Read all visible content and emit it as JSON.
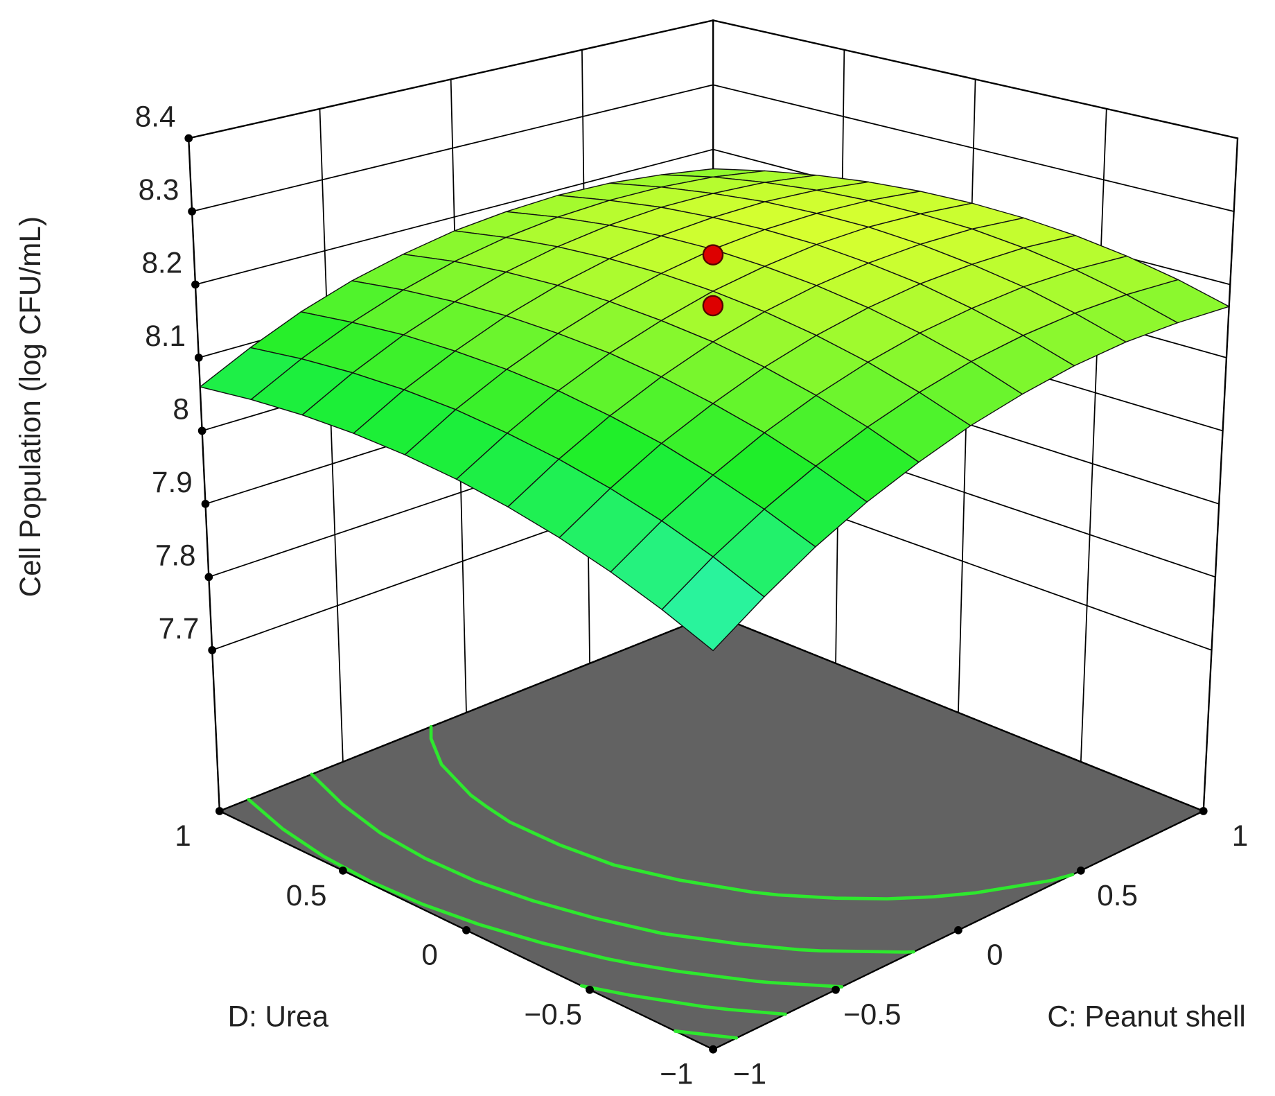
{
  "chart_data": {
    "type": "surface3d",
    "z_label": "Cell Population (log CFU/mL)",
    "x_label": "C: Peanut shell",
    "y_label": "D: Urea",
    "x": [
      -1,
      -0.8,
      -0.6,
      -0.4,
      -0.2,
      0,
      0.2,
      0.4,
      0.6,
      0.8,
      1
    ],
    "y": [
      -1,
      -0.8,
      -0.6,
      -0.4,
      -0.2,
      0,
      0.2,
      0.4,
      0.6,
      0.8,
      1
    ],
    "z": [
      [
        7.98,
        8.022,
        8.06,
        8.092,
        8.118,
        8.14,
        8.156,
        8.168,
        8.174,
        8.174,
        8.17
      ],
      [
        8.006,
        8.048,
        8.084,
        8.115,
        8.141,
        8.162,
        8.178,
        8.188,
        8.193,
        8.193,
        8.188
      ],
      [
        8.028,
        8.069,
        8.104,
        8.135,
        8.16,
        8.18,
        8.195,
        8.204,
        8.209,
        8.208,
        8.202
      ],
      [
        8.046,
        8.086,
        8.121,
        8.15,
        8.175,
        8.194,
        8.208,
        8.217,
        8.22,
        8.219,
        8.212
      ],
      [
        8.06,
        8.099,
        8.133,
        8.162,
        8.186,
        8.204,
        8.217,
        8.225,
        8.228,
        8.226,
        8.218
      ],
      [
        8.07,
        8.108,
        8.142,
        8.17,
        8.192,
        8.21,
        8.222,
        8.23,
        8.232,
        8.228,
        8.22
      ],
      [
        8.076,
        8.114,
        8.146,
        8.173,
        8.195,
        8.212,
        8.224,
        8.23,
        8.231,
        8.227,
        8.218
      ],
      [
        8.078,
        8.115,
        8.146,
        8.173,
        8.194,
        8.21,
        8.221,
        8.226,
        8.227,
        8.222,
        8.212
      ],
      [
        8.076,
        8.112,
        8.143,
        8.168,
        8.189,
        8.204,
        8.214,
        8.219,
        8.218,
        8.213,
        8.202
      ],
      [
        8.07,
        8.105,
        8.135,
        8.16,
        8.18,
        8.194,
        8.203,
        8.207,
        8.206,
        8.2,
        8.188
      ],
      [
        8.06,
        8.094,
        8.124,
        8.148,
        8.166,
        8.18,
        8.188,
        8.192,
        8.19,
        8.182,
        8.17
      ]
    ],
    "xlim": [
      -1,
      1
    ],
    "ylim": [
      -1,
      1
    ],
    "zlim": [
      7.48,
      8.4
    ],
    "xticks": [
      {
        "value": -1,
        "label": "−1"
      },
      {
        "value": -0.5,
        "label": "−0.5"
      },
      0,
      0.5,
      1
    ],
    "yticks": [
      {
        "value": -1,
        "label": "−1"
      },
      {
        "value": -0.5,
        "label": "−0.5"
      },
      0,
      0.5,
      1
    ],
    "zticks": [
      7.7,
      7.8,
      7.9,
      8,
      8.1,
      8.2,
      8.3,
      8.4
    ],
    "grid": true,
    "colormap": [
      "#2ef5c6",
      "#1aee2a",
      "#d8ff30"
    ],
    "floor_color": "#626262",
    "contour_color": "#2ee82e",
    "contour_levels": [
      8.0,
      8.04,
      8.08,
      8.12,
      8.17
    ],
    "points": {
      "color": "#dd0000",
      "x": [
        0,
        0
      ],
      "y": [
        0,
        0
      ],
      "z": [
        8.26,
        8.19
      ]
    }
  }
}
